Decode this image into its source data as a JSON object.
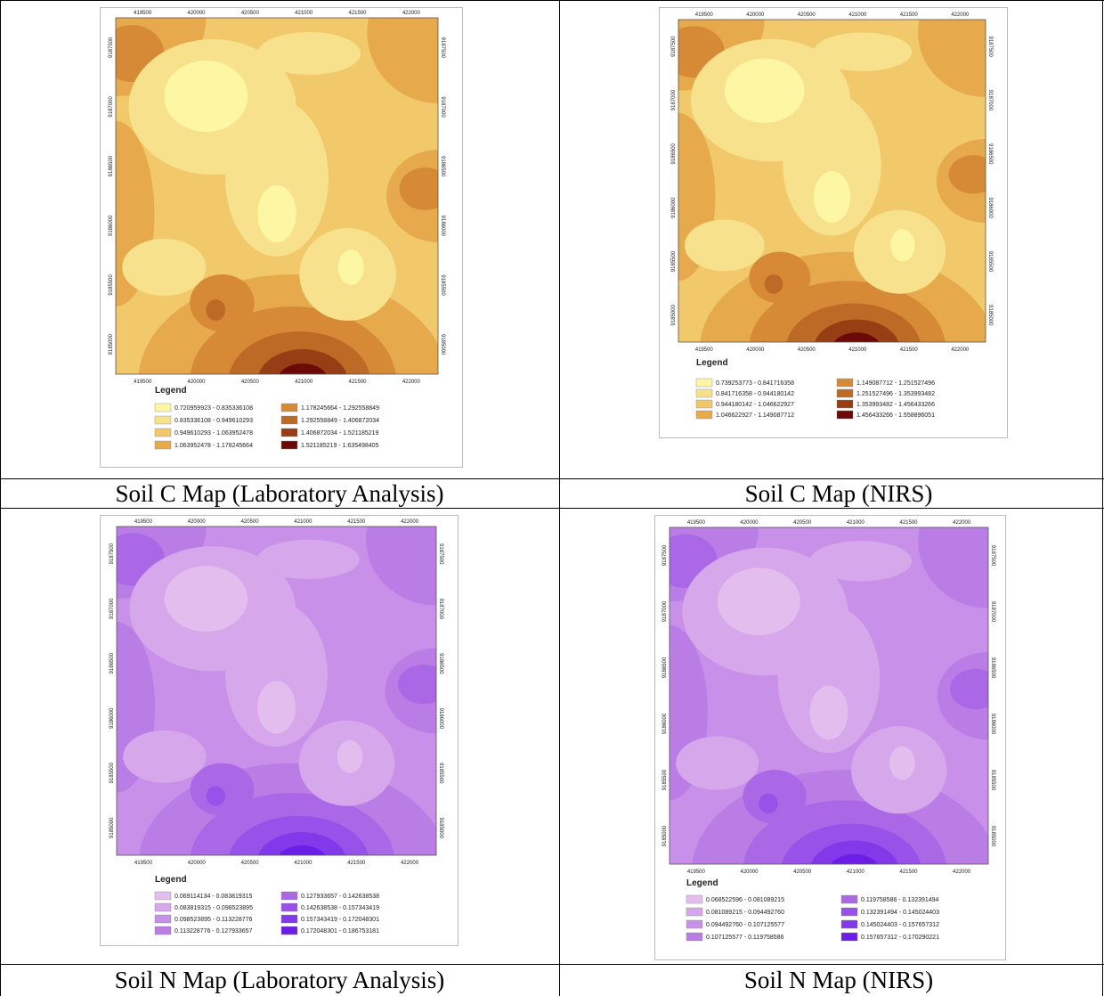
{
  "figures": [
    {
      "caption": "Soil C Map (Laboratory Analysis)",
      "legend_title": "Legend",
      "x_ticks": [
        "419500",
        "420000",
        "420500",
        "421000",
        "421500",
        "422000"
      ],
      "y_ticks": [
        "9185000",
        "9185500",
        "9186000",
        "9186500",
        "9187000",
        "9187500"
      ],
      "legend": [
        "0.720959923 - 0.835336108",
        "0.835336108 - 0.949610293",
        "0.949610293 - 1.063952478",
        "1.063952478 - 1.178245664",
        "1.178245664 - 1.292558849",
        "1.292558849 - 1.406872034",
        "1.406872034 - 1.521185219",
        "1.521185219 - 1.635498405"
      ],
      "colors": [
        "#fdf6a2",
        "#f8e18c",
        "#f1c86a",
        "#e6aa4c",
        "#d78a36",
        "#bd6a27",
        "#973e15",
        "#6c0a07"
      ]
    },
    {
      "caption": "Soil C Map (NIRS)",
      "legend_title": "Legend",
      "x_ticks": [
        "419500",
        "420000",
        "420500",
        "421000",
        "421500",
        "422000"
      ],
      "y_ticks": [
        "9185000",
        "9185500",
        "9186000",
        "9186500",
        "9187000",
        "9187500"
      ],
      "legend": [
        "0.739253773 - 0.841716358",
        "0.841716358 - 0.944180142",
        "0.944180142 - 1.046622927",
        "1.046622927 - 1.149087712",
        "1.149087712 - 1.251527496",
        "1.251527496 - 1.353993482",
        "1.353993482 - 1.456433266",
        "1.456433266 - 1.558896051"
      ],
      "colors": [
        "#fdf6a2",
        "#f8e18c",
        "#f1c86a",
        "#e6aa4c",
        "#d78a36",
        "#bd6a27",
        "#973e15",
        "#6c0a07"
      ]
    },
    {
      "caption": "Soil N Map (Laboratory Analysis)",
      "legend_title": "Legend",
      "x_ticks": [
        "419500",
        "420000",
        "420500",
        "421000",
        "421500",
        "422000"
      ],
      "y_ticks": [
        "9185000",
        "9185500",
        "9186000",
        "9186500",
        "9187000",
        "9187500"
      ],
      "legend": [
        "0.069114134 - 0.083819315",
        "0.083819315 - 0.098523895",
        "0.098523895 - 0.113228776",
        "0.113228776 - 0.127933657",
        "0.127933657 - 0.142638538",
        "0.142638538 - 0.157343419",
        "0.157343419 - 0.172048301",
        "0.172048301 - 0.186753181"
      ],
      "colors": [
        "#e2bdee",
        "#d6a7eb",
        "#c890e8",
        "#ba7de6",
        "#ab68e6",
        "#9852e9",
        "#8338ea",
        "#6d1ee6"
      ]
    },
    {
      "caption": "Soil N Map (NIRS)",
      "legend_title": "Legend",
      "x_ticks": [
        "419500",
        "420000",
        "420500",
        "421000",
        "421500",
        "422000"
      ],
      "y_ticks": [
        "9185000",
        "9185500",
        "9186000",
        "9186500",
        "9187000",
        "9187500"
      ],
      "legend": [
        "0.068522596 - 0.081089215",
        "0.081089215 - 0.094492760",
        "0.094492760 - 0.107125577",
        "0.107125577 - 0.119758586",
        "0.119758586 - 0.132391494",
        "0.132391494 - 0.145024403",
        "0.145024403 - 0.157657312",
        "0.157657312 - 0.170290221"
      ],
      "colors": [
        "#e2bdee",
        "#d6a7eb",
        "#c890e8",
        "#ba7de6",
        "#ab68e6",
        "#9852e9",
        "#8338ea",
        "#6d1ee6"
      ]
    }
  ]
}
